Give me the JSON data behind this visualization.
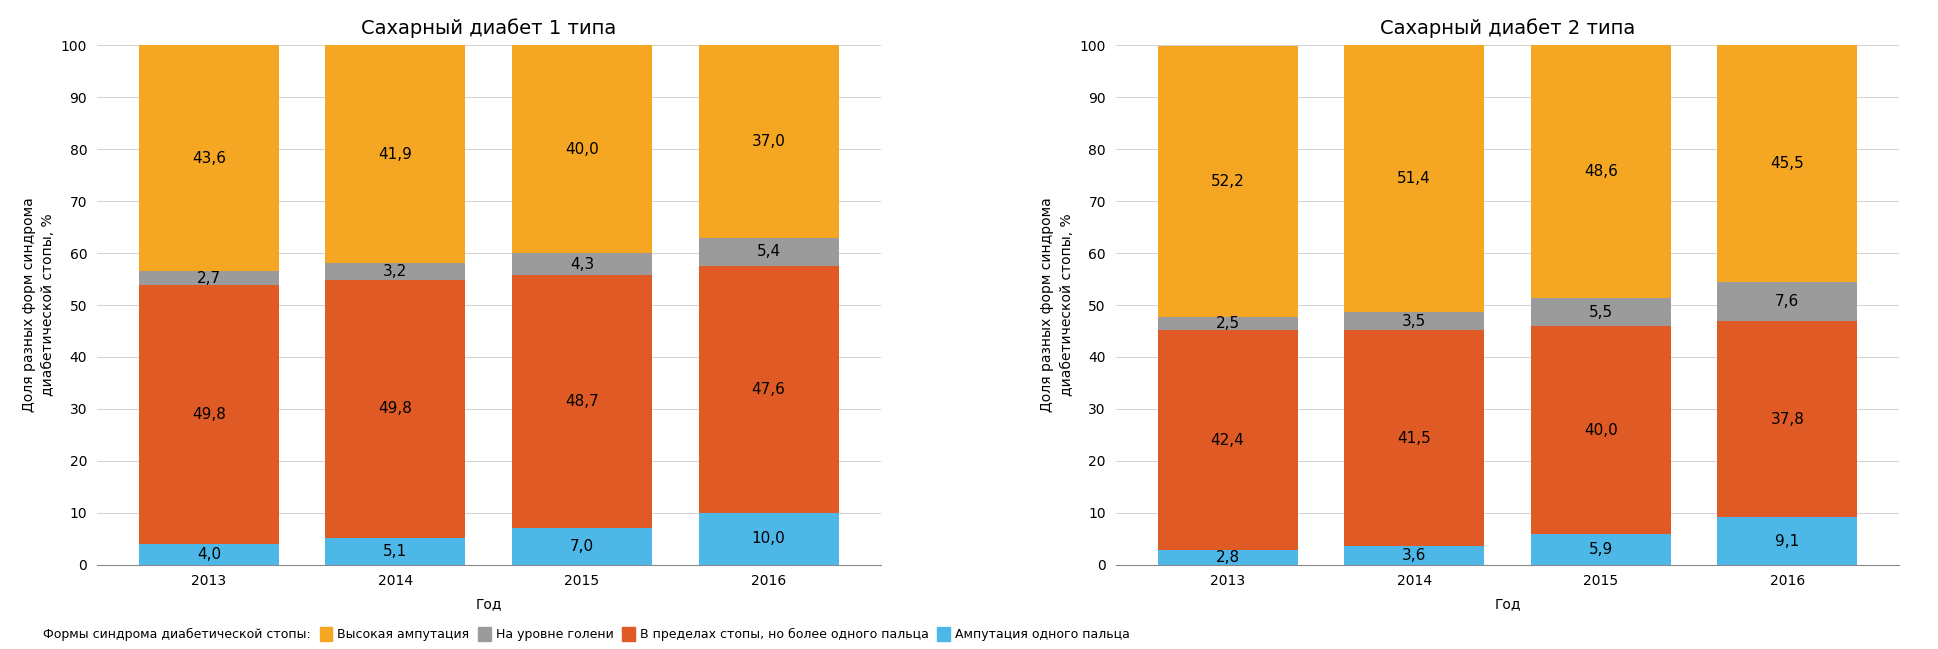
{
  "chart1_title": "Сахарный диабет 1 типа",
  "chart2_title": "Сахарный диабет 2 типа",
  "ylabel": "Доля разных форм синдрома\nдиабетической стопы, %",
  "xlabel": "Год",
  "years": [
    "2013",
    "2014",
    "2015",
    "2016"
  ],
  "chart1": {
    "amputation_one_finger": [
      4.0,
      5.1,
      7.0,
      10.0
    ],
    "within_foot": [
      49.8,
      49.8,
      48.7,
      47.6
    ],
    "shin_level": [
      2.7,
      3.2,
      4.3,
      5.4
    ],
    "high_amputation": [
      43.6,
      41.9,
      40.0,
      37.0
    ]
  },
  "chart2": {
    "amputation_one_finger": [
      2.8,
      3.6,
      5.9,
      9.1
    ],
    "within_foot": [
      42.4,
      41.5,
      40.0,
      37.8
    ],
    "shin_level": [
      2.5,
      3.5,
      5.5,
      7.6
    ],
    "high_amputation": [
      52.2,
      51.4,
      48.6,
      45.5
    ]
  },
  "colors": {
    "high_amputation": "#F5A623",
    "shin_level": "#9B9B9B",
    "within_foot": "#E05A25",
    "amputation_one_finger": "#4DB8E8"
  },
  "legend_label_prefix": "Формы синдрома диабетической стопы:",
  "legend_labels": {
    "high_amputation": "Высокая ампутация",
    "shin_level": "На уровне голени",
    "within_foot": "В пределах стопы, но более одного пальца",
    "amputation_one_finger": "Ампутация одного пальца"
  },
  "ylim": [
    0,
    100
  ],
  "yticks": [
    0,
    10,
    20,
    30,
    40,
    50,
    60,
    70,
    80,
    90,
    100
  ],
  "bar_width": 0.75,
  "background_color": "#FFFFFF",
  "text_fontsize": 11,
  "title_fontsize": 14,
  "axis_label_fontsize": 10,
  "tick_fontsize": 10,
  "legend_fontsize": 9
}
